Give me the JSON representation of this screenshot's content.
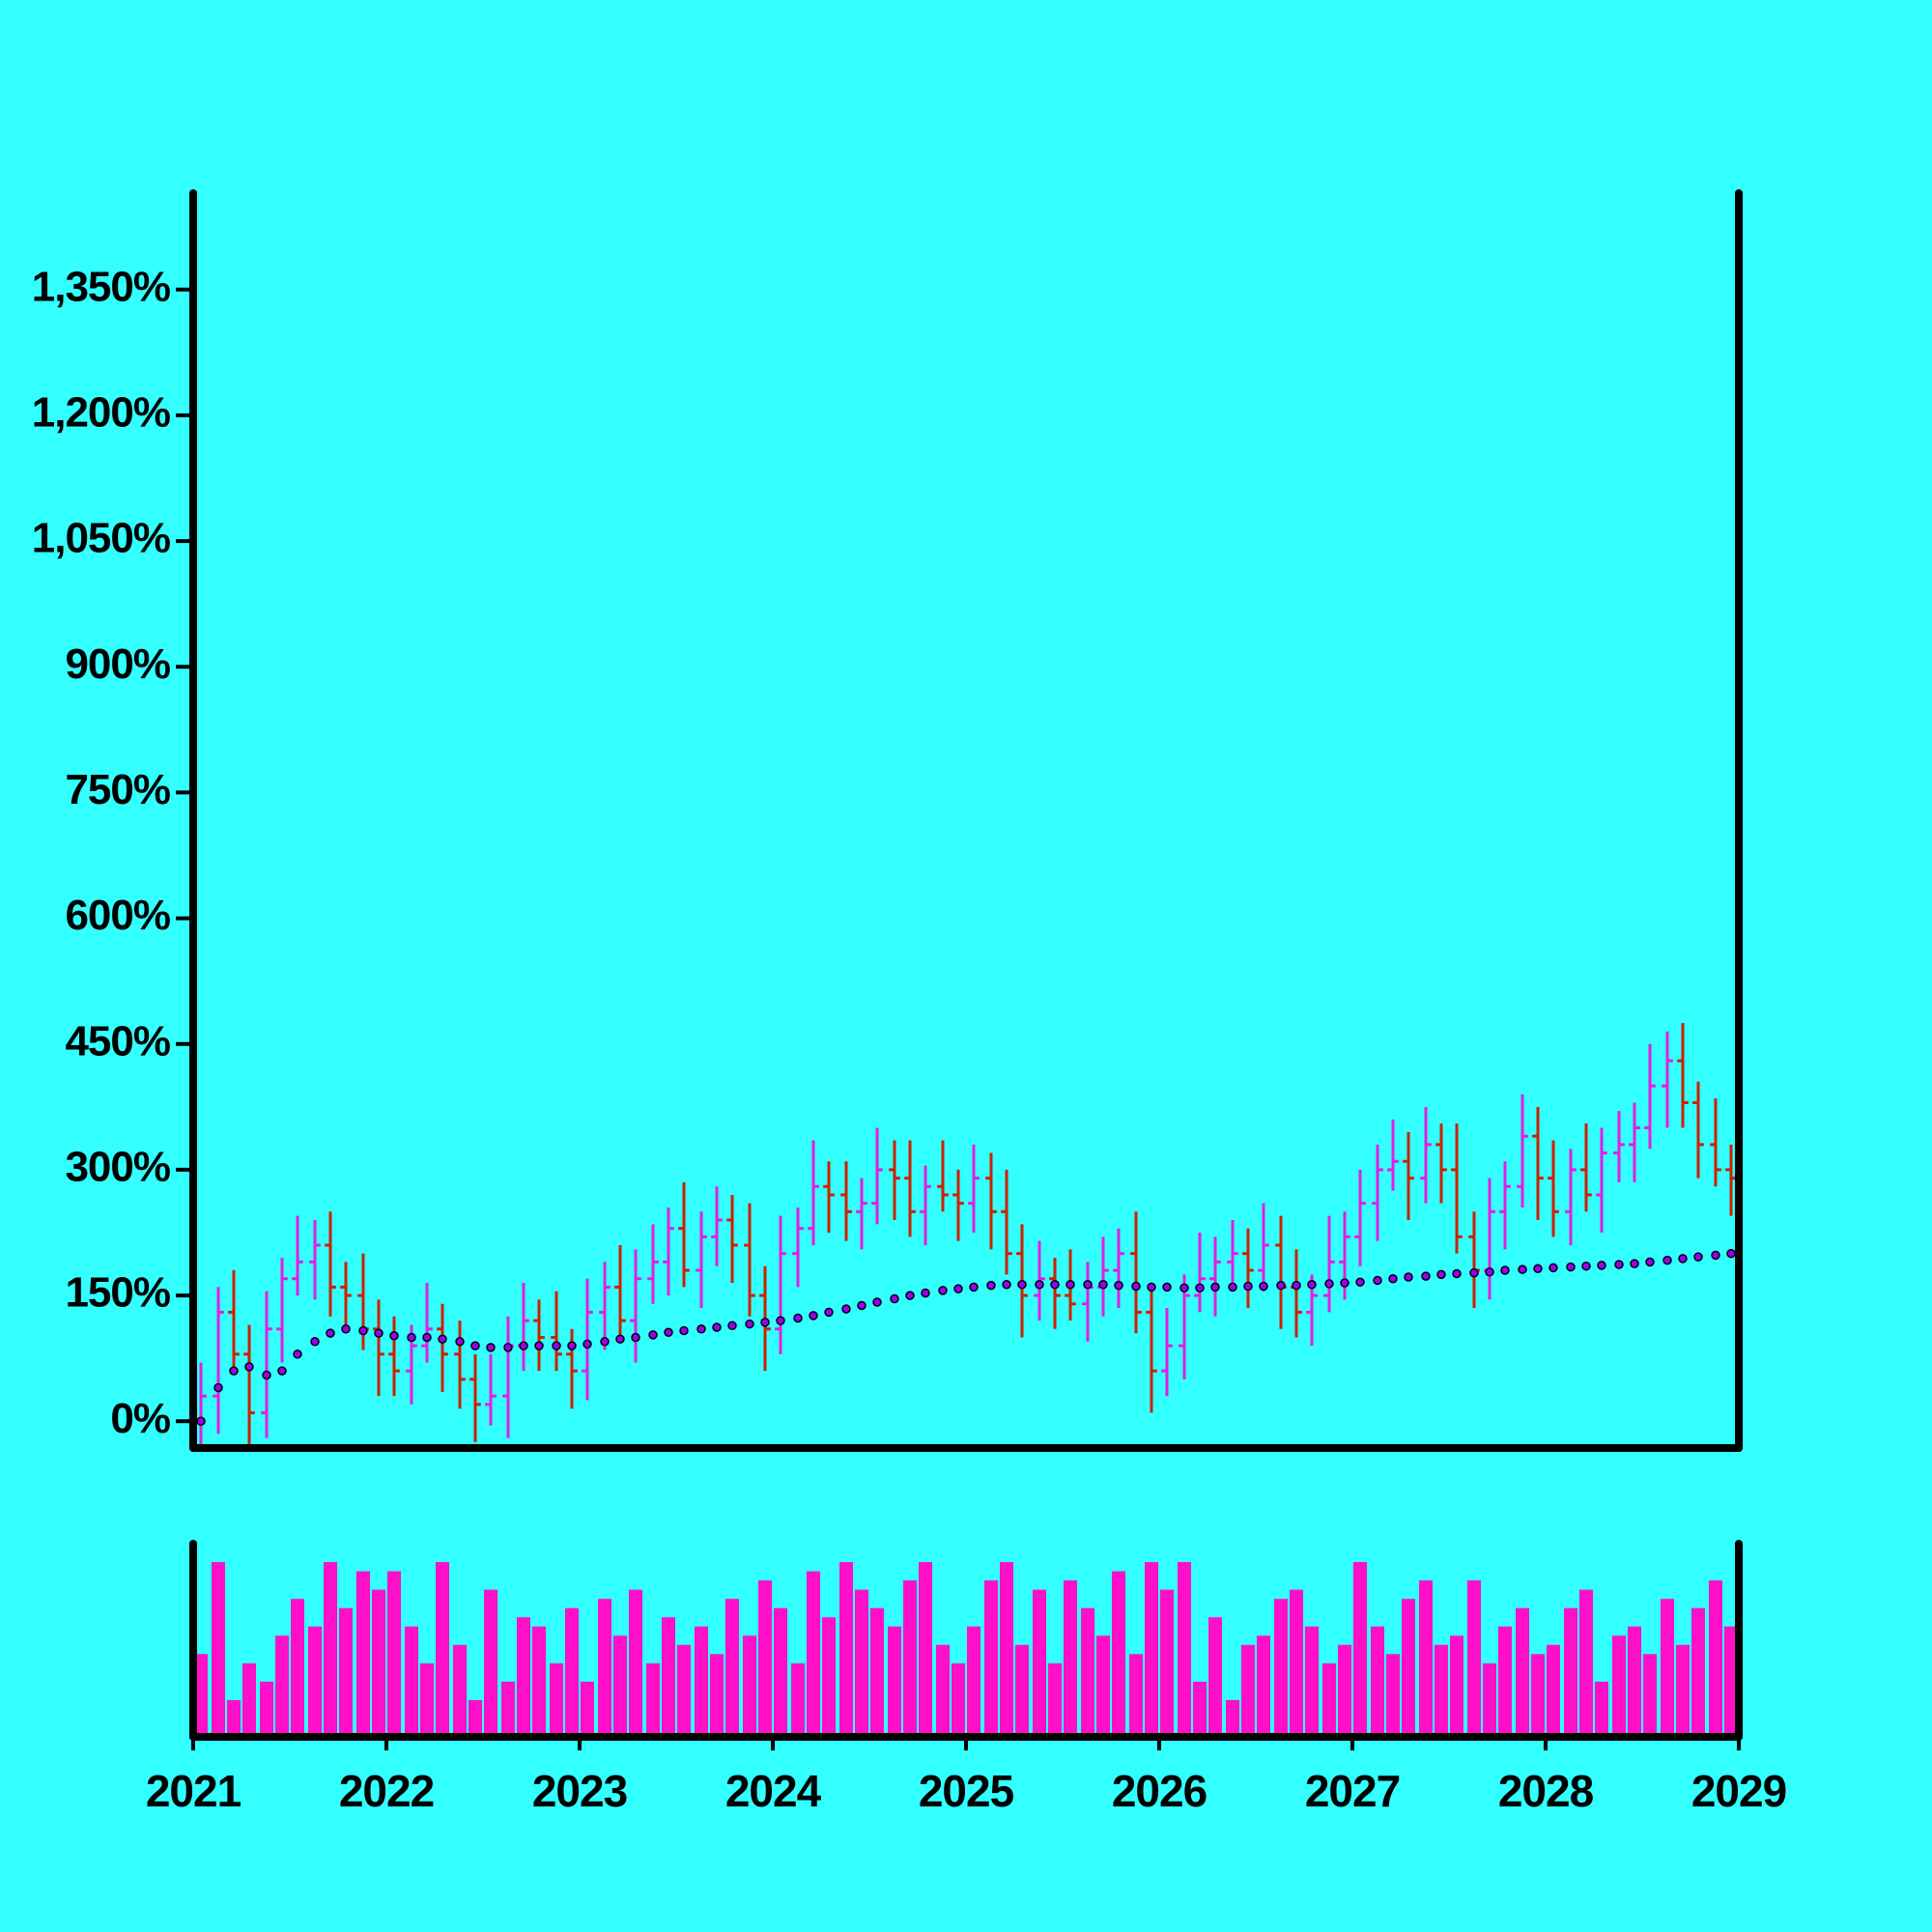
{
  "chart_data": {
    "type": "ohlc",
    "x": [
      2021.04,
      2021.13,
      2021.21,
      2021.29,
      2021.38,
      2021.46,
      2021.54,
      2021.63,
      2021.71,
      2021.79,
      2021.88,
      2021.96,
      2022.04,
      2022.13,
      2022.21,
      2022.29,
      2022.38,
      2022.46,
      2022.54,
      2022.63,
      2022.71,
      2022.79,
      2022.88,
      2022.96,
      2023.04,
      2023.13,
      2023.21,
      2023.29,
      2023.38,
      2023.46,
      2023.54,
      2023.63,
      2023.71,
      2023.79,
      2023.88,
      2023.96,
      2024.04,
      2024.13,
      2024.21,
      2024.29,
      2024.38,
      2024.46,
      2024.54,
      2024.63,
      2024.71,
      2024.79,
      2024.88,
      2024.96,
      2025.04,
      2025.13,
      2025.21,
      2025.29,
      2025.38,
      2025.46,
      2025.54,
      2025.63,
      2025.71,
      2025.79,
      2025.88,
      2025.96,
      2026.04,
      2026.13,
      2026.21,
      2026.29,
      2026.38,
      2026.46,
      2026.54,
      2026.63,
      2026.71,
      2026.79,
      2026.88,
      2026.96,
      2027.04,
      2027.13,
      2027.21,
      2027.29,
      2027.38,
      2027.46,
      2027.54,
      2027.63,
      2027.71,
      2027.79,
      2027.88,
      2027.96,
      2028.04,
      2028.13,
      2028.21,
      2028.29,
      2028.38,
      2028.46,
      2028.54,
      2028.63,
      2028.71,
      2028.79,
      2028.88,
      2028.96
    ],
    "open": [
      0,
      30,
      130,
      80,
      10,
      110,
      170,
      190,
      210,
      160,
      150,
      110,
      80,
      60,
      90,
      110,
      80,
      50,
      20,
      30,
      90,
      120,
      100,
      80,
      60,
      130,
      160,
      120,
      170,
      190,
      230,
      180,
      220,
      240,
      210,
      150,
      110,
      200,
      230,
      280,
      270,
      250,
      260,
      300,
      290,
      250,
      280,
      270,
      260,
      290,
      250,
      200,
      150,
      170,
      150,
      140,
      160,
      180,
      200,
      130,
      60,
      90,
      150,
      170,
      190,
      200,
      180,
      210,
      160,
      130,
      150,
      190,
      220,
      260,
      300,
      310,
      290,
      330,
      300,
      220,
      180,
      250,
      280,
      340,
      290,
      250,
      300,
      270,
      320,
      330,
      350,
      400,
      430,
      380,
      330,
      300
    ],
    "high": [
      70,
      160,
      180,
      115,
      155,
      195,
      245,
      240,
      250,
      190,
      200,
      145,
      125,
      115,
      165,
      140,
      120,
      80,
      80,
      125,
      165,
      145,
      155,
      110,
      170,
      190,
      210,
      205,
      235,
      255,
      285,
      250,
      280,
      270,
      260,
      185,
      245,
      255,
      335,
      310,
      310,
      290,
      350,
      335,
      335,
      305,
      335,
      300,
      330,
      320,
      300,
      235,
      215,
      195,
      205,
      190,
      220,
      230,
      250,
      165,
      135,
      175,
      225,
      220,
      240,
      230,
      260,
      245,
      205,
      175,
      245,
      250,
      300,
      330,
      360,
      345,
      375,
      355,
      355,
      250,
      290,
      310,
      390,
      375,
      335,
      325,
      355,
      350,
      370,
      380,
      450,
      465,
      475,
      405,
      385,
      330
    ],
    "low": [
      -35,
      -15,
      55,
      -40,
      -20,
      70,
      150,
      145,
      125,
      105,
      85,
      30,
      30,
      20,
      70,
      35,
      15,
      -25,
      -5,
      -20,
      60,
      60,
      60,
      15,
      25,
      85,
      95,
      70,
      140,
      150,
      160,
      135,
      185,
      165,
      125,
      60,
      80,
      160,
      210,
      225,
      215,
      205,
      235,
      240,
      220,
      210,
      250,
      215,
      225,
      205,
      175,
      100,
      120,
      110,
      120,
      95,
      125,
      135,
      105,
      10,
      30,
      50,
      130,
      125,
      155,
      135,
      155,
      110,
      100,
      90,
      130,
      145,
      185,
      215,
      275,
      240,
      260,
      260,
      200,
      135,
      145,
      205,
      255,
      240,
      220,
      210,
      250,
      225,
      285,
      285,
      325,
      350,
      350,
      290,
      280,
      245
    ],
    "close": [
      30,
      130,
      80,
      10,
      110,
      170,
      190,
      210,
      160,
      150,
      110,
      80,
      60,
      90,
      110,
      80,
      50,
      20,
      30,
      90,
      120,
      100,
      80,
      60,
      130,
      160,
      120,
      170,
      190,
      230,
      180,
      220,
      240,
      210,
      150,
      110,
      200,
      230,
      280,
      270,
      250,
      260,
      300,
      290,
      250,
      280,
      270,
      260,
      290,
      250,
      200,
      150,
      170,
      150,
      140,
      160,
      180,
      200,
      130,
      60,
      90,
      150,
      170,
      190,
      200,
      180,
      210,
      160,
      130,
      150,
      190,
      220,
      260,
      300,
      310,
      290,
      330,
      300,
      220,
      180,
      250,
      280,
      340,
      290,
      250,
      300,
      270,
      320,
      330,
      350,
      400,
      430,
      380,
      330,
      300,
      290
    ],
    "up_color": "#e020e0",
    "down_color": "#cc2200",
    "moving_average": {
      "color": "#9900ee",
      "values": [
        0,
        40,
        60,
        65,
        55,
        60,
        80,
        95,
        105,
        110,
        108,
        105,
        102,
        100,
        100,
        98,
        95,
        90,
        88,
        88,
        90,
        90,
        90,
        90,
        92,
        95,
        98,
        100,
        103,
        106,
        108,
        110,
        112,
        114,
        116,
        118,
        120,
        123,
        126,
        130,
        134,
        138,
        142,
        146,
        150,
        153,
        156,
        158,
        160,
        162,
        163,
        163,
        163,
        163,
        163,
        163,
        163,
        162,
        161,
        160,
        160,
        159,
        159,
        160,
        160,
        161,
        161,
        162,
        162,
        163,
        164,
        165,
        166,
        168,
        170,
        172,
        173,
        175,
        176,
        177,
        178,
        180,
        181,
        182,
        183,
        184,
        185,
        186,
        187,
        188,
        190,
        192,
        194,
        196,
        198,
        200
      ]
    },
    "volume": {
      "color": "#ff10c8",
      "ylim": [
        0,
        105
      ],
      "values": [
        45,
        95,
        20,
        40,
        30,
        55,
        75,
        60,
        95,
        70,
        90,
        80,
        90,
        60,
        40,
        95,
        50,
        20,
        80,
        30,
        65,
        60,
        40,
        70,
        30,
        75,
        55,
        80,
        40,
        65,
        50,
        60,
        45,
        75,
        55,
        85,
        70,
        40,
        90,
        65,
        95,
        80,
        70,
        60,
        85,
        95,
        50,
        40,
        60,
        85,
        95,
        50,
        80,
        40,
        85,
        70,
        55,
        90,
        45,
        95,
        80,
        95,
        30,
        65,
        20,
        50,
        55,
        75,
        80,
        60,
        40,
        50,
        95,
        60,
        45,
        75,
        85,
        50,
        55,
        85,
        40,
        60,
        70,
        45,
        50,
        70,
        80,
        30,
        55,
        60,
        45,
        75,
        50,
        70,
        85,
        60
      ]
    },
    "xlim": [
      2021,
      2029
    ],
    "xticks": [
      2021,
      2022,
      2023,
      2024,
      2025,
      2026,
      2027,
      2028,
      2029
    ],
    "ylim": [
      -32,
      1465
    ],
    "yticks": [
      {
        "value": 0,
        "label": "0%"
      },
      {
        "value": 150,
        "label": "150%"
      },
      {
        "value": 300,
        "label": "300%"
      },
      {
        "value": 450,
        "label": "450%"
      },
      {
        "value": 600,
        "label": "600%"
      },
      {
        "value": 750,
        "label": "750%"
      },
      {
        "value": 900,
        "label": "900%"
      },
      {
        "value": 1050,
        "label": "1,050%"
      },
      {
        "value": 1200,
        "label": "1,200%"
      },
      {
        "value": 1350,
        "label": "1,350%"
      }
    ]
  }
}
